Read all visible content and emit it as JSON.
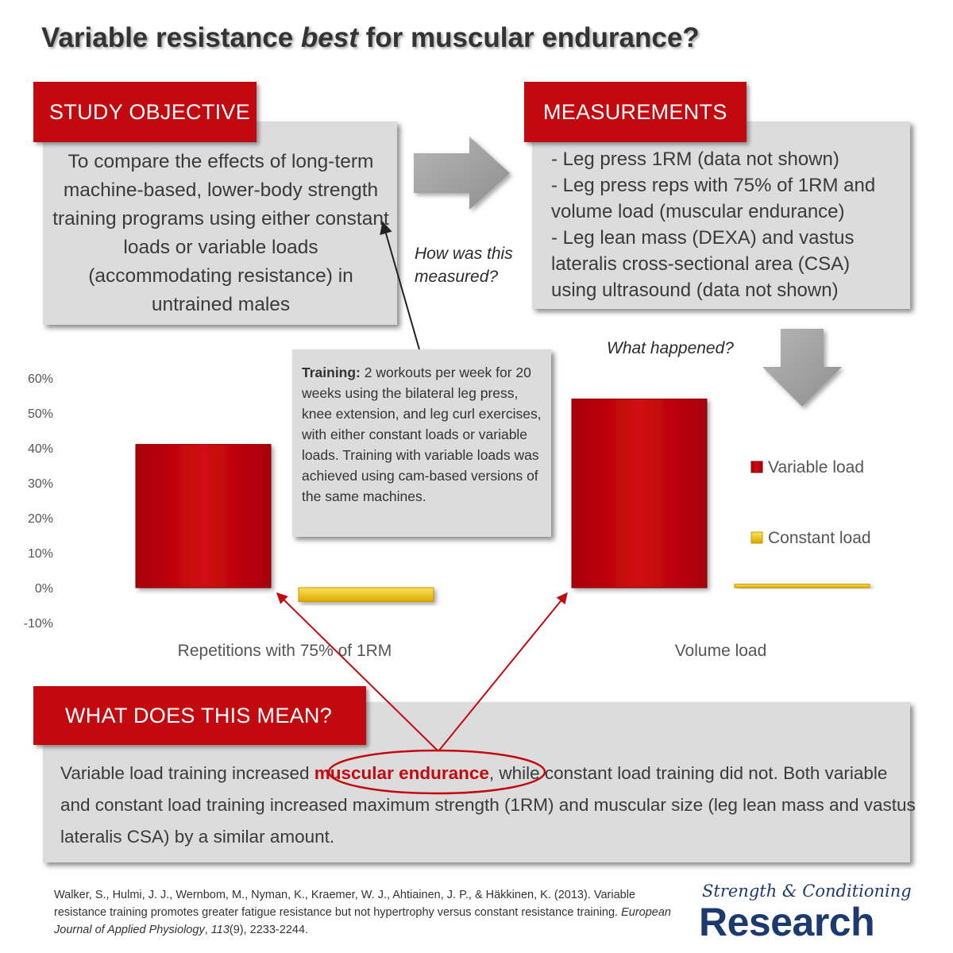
{
  "title_before": "Variable resistance ",
  "title_emph": "best",
  "title_after": " for muscular endurance?",
  "objective": {
    "label": "STUDY OBJECTIVE",
    "text": "To compare the effects of long-term machine-based, lower-body strength training programs using either constant loads or variable loads (accommodating resistance) in untrained males"
  },
  "measurements": {
    "label": "MEASUREMENTS",
    "items": [
      "- Leg press 1RM (data not shown)",
      "- Leg press reps with 75% of 1RM and",
      "volume load (muscular endurance)",
      "- Leg lean mass (DEXA) and vastus",
      "lateralis cross-sectional area (CSA)",
      "using ultrasound (data not shown)"
    ]
  },
  "how_measured": [
    "How was this",
    "measured?"
  ],
  "what_happened": "What happened?",
  "training": {
    "bold": "Training:",
    "text": " 2 workouts per week for 20 weeks using the bilateral leg press, knee extension, and leg curl exercises, with either constant loads or variable loads. Training with variable loads was achieved using cam-based versions of the same machines."
  },
  "meaning": {
    "label": "WHAT DOES THIS MEAN?",
    "pre": "Variable load training increased ",
    "highlight": "muscular endurance",
    "post": ", while constant load training did not. Both variable and constant load training increased maximum strength (1RM) and muscular size (leg lean mass and vastus lateralis CSA) by a similar amount."
  },
  "citation": {
    "part1": "Walker, S., Hulmi, J. J., Wernbom, M., Nyman, K., Kraemer, W. J., Ahtiainen, J. P., & Häkkinen, K. (2013). Variable resistance training promotes greater fatigue resistance but not hypertrophy versus constant resistance training. ",
    "journal": "European Journal of Applied Physiology",
    "part2": ", ",
    "volume": "113",
    "part3": "(9), 2233-2244."
  },
  "logo": {
    "top": "Strength & Conditioning",
    "main": "Research"
  },
  "colors": {
    "accent_red": "#c2090f",
    "constant_yellow": "#f2c400",
    "panel_gray": "#dcdcdc",
    "logo_blue": "#1d3a6e"
  },
  "chart_data": {
    "type": "bar",
    "categories": [
      "Repetitions with 75% of 1RM",
      "Volume load"
    ],
    "series": [
      {
        "name": "Variable load",
        "values": [
          41,
          54
        ]
      },
      {
        "name": "Constant load",
        "values": [
          -4,
          1
        ]
      }
    ],
    "yticks": [
      "60%",
      "50%",
      "40%",
      "30%",
      "20%",
      "10%",
      "0%",
      "-10%"
    ],
    "ylim": [
      -10,
      60
    ],
    "grid": false,
    "legend": "right"
  }
}
